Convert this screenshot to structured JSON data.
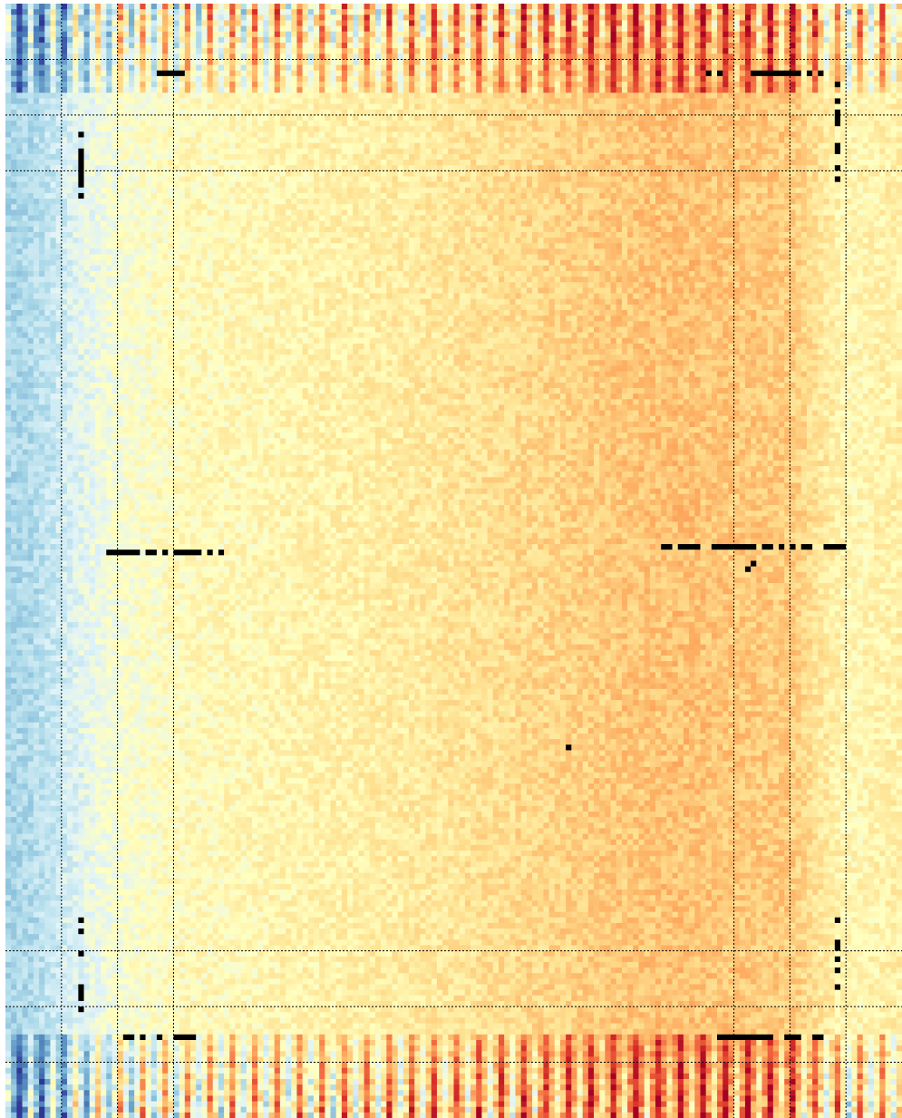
{
  "chart_data": {
    "type": "heatmap",
    "title": "",
    "xlabel": "",
    "ylabel": "",
    "grid": "dotted",
    "n_cols": 160,
    "n_rows": 200,
    "colormap": [
      "#313695",
      "#4575b4",
      "#74add1",
      "#abd9e9",
      "#e0f3f8",
      "#ffffbf",
      "#fee090",
      "#fdae61",
      "#f46d43",
      "#d73027",
      "#a50026"
    ],
    "missing_color": "#000000",
    "vrange": [
      -1,
      1
    ],
    "grid_cols": [
      10,
      20,
      30,
      130,
      140,
      150
    ],
    "grid_rows": [
      10,
      20,
      30,
      170,
      180,
      190
    ],
    "col_profile": [
      [
        0,
        -0.4
      ],
      [
        4,
        -0.38
      ],
      [
        8,
        -0.3
      ],
      [
        12,
        -0.2
      ],
      [
        16,
        -0.12
      ],
      [
        20,
        -0.05
      ],
      [
        25,
        -0.02
      ],
      [
        30,
        0.02
      ],
      [
        40,
        0.04
      ],
      [
        55,
        0.08
      ],
      [
        70,
        0.12
      ],
      [
        85,
        0.18
      ],
      [
        100,
        0.25
      ],
      [
        110,
        0.3
      ],
      [
        120,
        0.32
      ],
      [
        130,
        0.3
      ],
      [
        140,
        0.28
      ],
      [
        145,
        0.15
      ],
      [
        150,
        0.05
      ],
      [
        155,
        0.08
      ],
      [
        159,
        0.1
      ]
    ],
    "row_profile": [
      [
        0,
        1.0
      ],
      [
        6,
        0.8
      ],
      [
        12,
        0.6
      ],
      [
        20,
        0.4
      ],
      [
        40,
        0.3
      ],
      [
        100,
        0.25
      ],
      [
        160,
        0.3
      ],
      [
        180,
        0.4
      ],
      [
        188,
        0.6
      ],
      [
        194,
        0.8
      ],
      [
        199,
        1.0
      ]
    ],
    "missing_segments": [
      {
        "row": 98,
        "col_start": 18,
        "col_end": 38
      },
      {
        "row": 97,
        "col_start": 117,
        "col_end": 150
      },
      {
        "row": 12,
        "col_start": 26,
        "col_end": 32
      },
      {
        "row": 12,
        "col_start": 125,
        "col_end": 145
      },
      {
        "row": 185,
        "col_start": 20,
        "col_end": 33
      },
      {
        "row": 185,
        "col_start": 127,
        "col_end": 145
      }
    ],
    "missing_vertical": [
      {
        "col": 13,
        "row_start": 22,
        "row_end": 34
      },
      {
        "col": 148,
        "row_start": 14,
        "row_end": 32
      },
      {
        "col": 13,
        "row_start": 164,
        "row_end": 182
      },
      {
        "col": 148,
        "row_start": 164,
        "row_end": 180
      }
    ],
    "missing_points": [
      [
        133,
        100
      ],
      [
        101,
        132
      ],
      [
        100,
        133
      ]
    ]
  }
}
